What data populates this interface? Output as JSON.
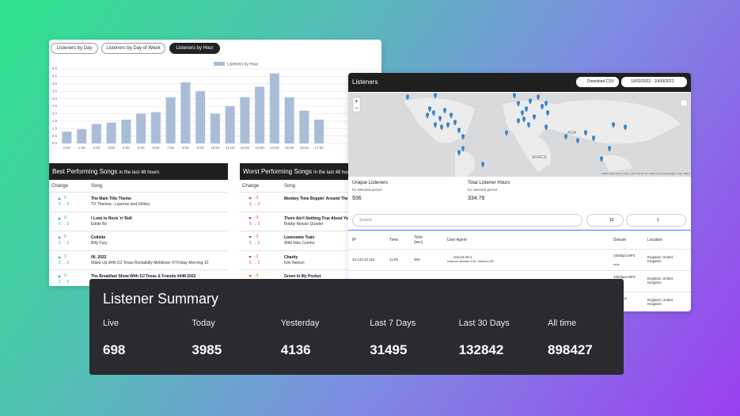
{
  "tabs": [
    "Listeners by Day",
    "Listeners by Day of Week",
    "Listeners by Hour"
  ],
  "chart_data": {
    "type": "bar",
    "legend": "Listeners by Hour",
    "categories": [
      "0:00",
      "1:00",
      "2:00",
      "3:00",
      "4:00",
      "5:00",
      "6:00",
      "7:00",
      "8:00",
      "9:00",
      "10:00",
      "11:00",
      "12:00",
      "13:00",
      "14:00",
      "15:00",
      "16:00",
      "17:00"
    ],
    "values": [
      0.8,
      0.95,
      1.3,
      1.4,
      1.6,
      2.0,
      2.1,
      3.1,
      4.1,
      3.5,
      2.0,
      2.5,
      3.1,
      3.8,
      4.7,
      3.1,
      2.2,
      1.6
    ],
    "color": "#a9bdd9",
    "ylim": [
      0,
      5
    ],
    "yticks": [
      {
        "value": 0,
        "label": "0.0"
      },
      {
        "value": 0.5,
        "label": "0.5"
      },
      {
        "value": 1,
        "label": "1.0"
      },
      {
        "value": 1.5,
        "label": "1.5"
      },
      {
        "value": 2,
        "label": "2.0"
      },
      {
        "value": 2.5,
        "label": "2.5"
      },
      {
        "value": 3,
        "label": "3.0"
      },
      {
        "value": 3.5,
        "label": "3.5"
      },
      {
        "value": 4,
        "label": "4.0"
      },
      {
        "value": 4.5,
        "label": "4.5"
      },
      {
        "value": 5,
        "label": "5.0"
      }
    ],
    "grid": true
  },
  "best_songs": {
    "title": "Best Performing Songs",
    "subtitle": "in the last 48 hours",
    "columns": [
      "Change",
      "Song"
    ],
    "rows": [
      {
        "change": "0",
        "detail": "5 → 5",
        "song": "The Main Title Theme",
        "artist": "TV Themes - Laverne and Shirley"
      },
      {
        "change": "0",
        "detail": "5 → 5",
        "song": "I Love to Rock 'n' Roll",
        "artist": "Eddie Bo"
      },
      {
        "change": "0",
        "detail": "5 → 5",
        "song": "Collette",
        "artist": "Billy Fury"
      },
      {
        "change": "3",
        "detail": "2 → 5",
        "song": "06, 2022",
        "artist": "Wake Up With DJ Texas Rockabilly Meltdown VI Friday Morning 10"
      },
      {
        "change": "3",
        "detail": "2 → 5",
        "song": "The Breakfast Show With DJ Texas & Friends #448 2022",
        "artist": ""
      }
    ]
  },
  "worst_songs": {
    "title": "Worst Performing Songs",
    "subtitle": "in the last 48 hours",
    "columns": [
      "Change",
      "Song"
    ],
    "rows": [
      {
        "change": "-3",
        "detail": "5 → 2",
        "song": "Monkey Time Boppin' Around The",
        "artist": ""
      },
      {
        "change": "-3",
        "detail": "5 → 2",
        "song": "There Ain't Nothing True About You",
        "artist": "Bobby Nelson Quartet"
      },
      {
        "change": "-3",
        "detail": "5 → 2",
        "song": "Lonesome Train",
        "artist": "Wild Wax Combo"
      },
      {
        "change": "-3",
        "detail": "5 → 2",
        "song": "Charity",
        "artist": "Kirk Nelson"
      },
      {
        "change": "-3",
        "detail": "5 → 2",
        "song": "Green In My Pocket",
        "artist": ""
      }
    ]
  },
  "listeners": {
    "title": "Listeners",
    "download": "Download CSV",
    "date_range": "10/02/2022 - 10/09/2022",
    "map_labels": [
      "AFRICA",
      "ASIA"
    ],
    "attribution": "Leaflet | Map tiles by Carto, under CC BY 3.0. Data by OpenStreetMap, under ODbL",
    "stats": [
      {
        "label": "Unique Listeners",
        "note": "for selected period",
        "value": "936"
      },
      {
        "label": "Total Listener Hours",
        "note": "for selected period",
        "value": "334.78"
      }
    ],
    "search": "Search",
    "page_size": "10",
    "page": "1",
    "columns": [
      "IP",
      "Time",
      "Time (sec)",
      "User Agent",
      "Stream",
      "Location"
    ],
    "rows": [
      {
        "ip": "34.142.42.115",
        "time": "11:05",
        "secs": "665",
        "agent": "zeno/3.25.1",
        "agent_detail": "Unknown Browser 0.00, Unknown OS",
        "stream": "192kbps MP3",
        "stream_detail": "zeno",
        "location": "England, United Kingdom"
      },
      {
        "stream": "192kbps MP3",
        "location": "England, United Kingdom"
      },
      {
        "stream": "192kbps",
        "location": "England, United Kingdom"
      }
    ]
  },
  "summary": {
    "title": "Listener Summary",
    "items": [
      {
        "label": "Live",
        "value": "698"
      },
      {
        "label": "Today",
        "value": "3985"
      },
      {
        "label": "Yesterday",
        "value": "4136"
      },
      {
        "label": "Last 7 Days",
        "value": "31495"
      },
      {
        "label": "Last 30 Days",
        "value": "132842"
      },
      {
        "label": "All time",
        "value": "898427"
      }
    ]
  }
}
